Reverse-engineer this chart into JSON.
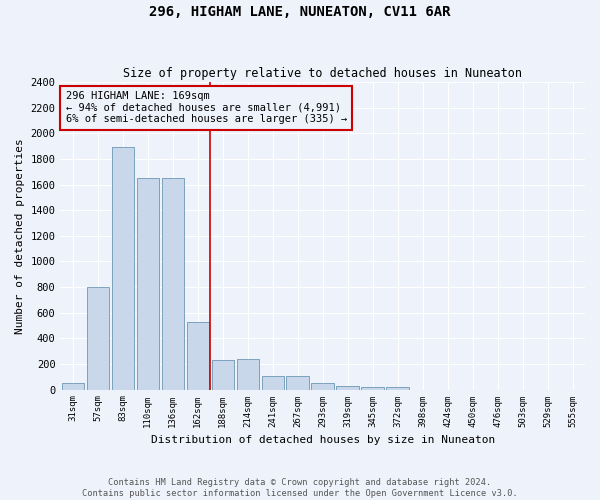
{
  "title": "296, HIGHAM LANE, NUNEATON, CV11 6AR",
  "subtitle": "Size of property relative to detached houses in Nuneaton",
  "xlabel": "Distribution of detached houses by size in Nuneaton",
  "ylabel": "Number of detached properties",
  "bar_color": "#c8d8ea",
  "bar_edge_color": "#5588aa",
  "background_color": "#eef2fa",
  "grid_color": "#ffffff",
  "annotation_line_color": "#cc0000",
  "annotation_box_color": "#cc0000",
  "annotation_text": "296 HIGHAM LANE: 169sqm\n← 94% of detached houses are smaller (4,991)\n6% of semi-detached houses are larger (335) →",
  "property_sqm": 169,
  "categories": [
    "31sqm",
    "57sqm",
    "83sqm",
    "110sqm",
    "136sqm",
    "162sqm",
    "188sqm",
    "214sqm",
    "241sqm",
    "267sqm",
    "293sqm",
    "319sqm",
    "345sqm",
    "372sqm",
    "398sqm",
    "424sqm",
    "450sqm",
    "476sqm",
    "503sqm",
    "529sqm",
    "555sqm"
  ],
  "values": [
    50,
    800,
    1890,
    1650,
    1650,
    530,
    230,
    235,
    105,
    105,
    55,
    30,
    20,
    20,
    0,
    0,
    0,
    0,
    0,
    0,
    0
  ],
  "ylim": [
    0,
    2400
  ],
  "yticks": [
    0,
    200,
    400,
    600,
    800,
    1000,
    1200,
    1400,
    1600,
    1800,
    2000,
    2200,
    2400
  ],
  "vline_x": 5.5,
  "footnote": "Contains HM Land Registry data © Crown copyright and database right 2024.\nContains public sector information licensed under the Open Government Licence v3.0.",
  "figsize": [
    6.0,
    5.0
  ],
  "dpi": 100
}
